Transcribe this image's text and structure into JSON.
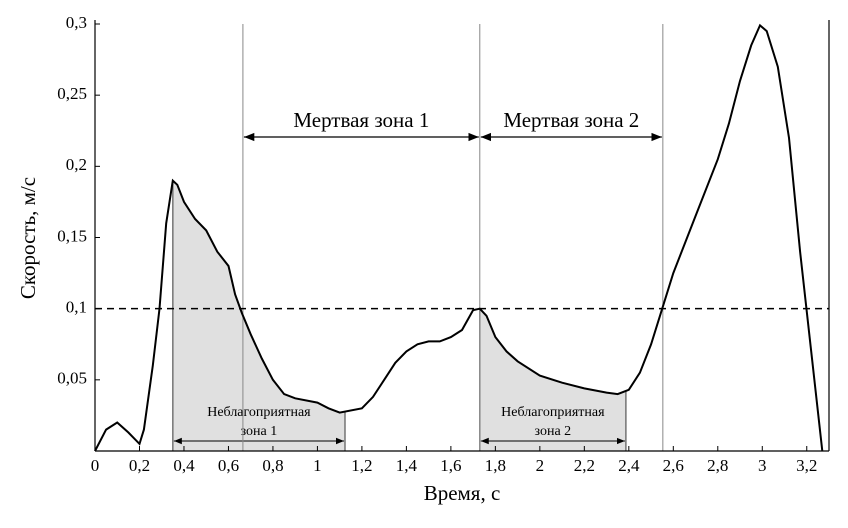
{
  "chart_data": {
    "type": "line",
    "x_label": "Время, с",
    "y_label": "Скорость, м/с",
    "x": [
      0,
      0.05,
      0.1,
      0.15,
      0.2,
      0.22,
      0.26,
      0.29,
      0.32,
      0.35,
      0.37,
      0.4,
      0.45,
      0.5,
      0.55,
      0.6,
      0.63,
      0.66,
      0.7,
      0.75,
      0.8,
      0.85,
      0.9,
      1,
      1.05,
      1.1,
      1.2,
      1.25,
      1.3,
      1.35,
      1.4,
      1.45,
      1.5,
      1.55,
      1.6,
      1.65,
      1.7,
      1.73,
      1.76,
      1.8,
      1.85,
      1.9,
      2,
      2.1,
      2.2,
      2.3,
      2.35,
      2.4,
      2.45,
      2.5,
      2.55,
      2.6,
      2.7,
      2.8,
      2.85,
      2.9,
      2.95,
      2.99,
      3.02,
      3.07,
      3.12,
      3.17,
      3.22,
      3.27
    ],
    "values": [
      0,
      0.015,
      0.02,
      0.013,
      0.005,
      0.015,
      0.06,
      0.1,
      0.16,
      0.19,
      0.187,
      0.175,
      0.163,
      0.155,
      0.14,
      0.13,
      0.11,
      0.097,
      0.082,
      0.065,
      0.05,
      0.04,
      0.037,
      0.034,
      0.03,
      0.027,
      0.03,
      0.038,
      0.05,
      0.062,
      0.07,
      0.075,
      0.077,
      0.077,
      0.08,
      0.085,
      0.099,
      0.1,
      0.095,
      0.08,
      0.07,
      0.063,
      0.053,
      0.048,
      0.044,
      0.041,
      0.04,
      0.043,
      0.055,
      0.075,
      0.1,
      0.125,
      0.165,
      0.205,
      0.23,
      0.26,
      0.285,
      0.299,
      0.295,
      0.27,
      0.22,
      0.14,
      0.07,
      0
    ],
    "color": "#000000",
    "xlim": [
      0,
      3.3
    ],
    "ylim": [
      0,
      0.3
    ],
    "xticks": [
      0,
      {
        "value": 0.2,
        "label": "0,2"
      },
      {
        "value": 0.4,
        "label": "0,4"
      },
      {
        "value": 0.6,
        "label": "0,6"
      },
      {
        "value": 0.8,
        "label": "0,8"
      },
      1,
      {
        "value": 1.2,
        "label": "1,2"
      },
      {
        "value": 1.4,
        "label": "1,4"
      },
      {
        "value": 1.6,
        "label": "1,6"
      },
      {
        "value": 1.8,
        "label": "1,8"
      },
      2,
      {
        "value": 2.2,
        "label": "2,2"
      },
      {
        "value": 2.4,
        "label": "2,4"
      },
      {
        "value": 2.6,
        "label": "2,6"
      },
      {
        "value": 2.8,
        "label": "2,8"
      },
      3,
      {
        "value": 3.2,
        "label": "3,2"
      }
    ],
    "yticks": [
      {
        "value": 0.05,
        "label": "0,05"
      },
      {
        "value": 0.1,
        "label": "0,1"
      },
      {
        "value": 0.15,
        "label": "0,15"
      },
      {
        "value": 0.2,
        "label": "0,2"
      },
      {
        "value": 0.25,
        "label": "0,25"
      },
      {
        "value": 0.3,
        "label": "0,3"
      }
    ],
    "threshold": 0.1,
    "dead_zones": [
      {
        "label": "Мертвая зона 1",
        "x": [
          0.665,
          1.73
        ]
      },
      {
        "label": "Мертвая зона 2",
        "x": [
          1.73,
          2.553
        ]
      }
    ],
    "adverse_zones": [
      {
        "label": [
          "Неблагоприятная",
          "зона 1"
        ],
        "x": [
          0.35,
          1.124
        ]
      },
      {
        "label": [
          "Неблагоприятная",
          "зона 2"
        ],
        "x": [
          1.73,
          2.387
        ]
      }
    ]
  }
}
